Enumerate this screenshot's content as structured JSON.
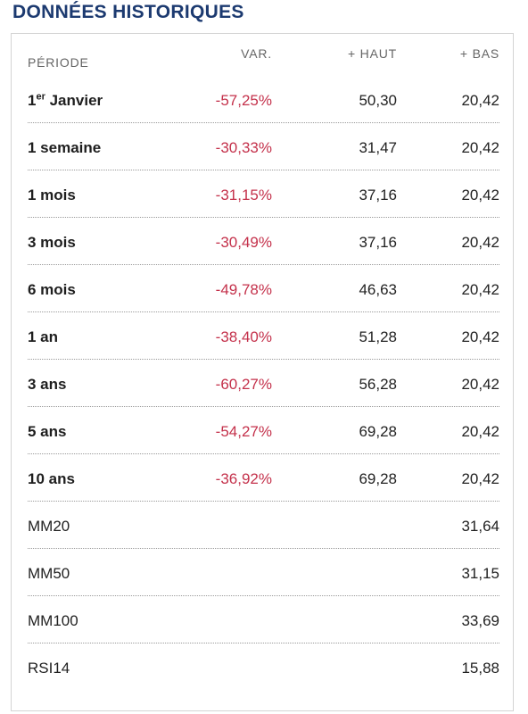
{
  "title": "DONNÉES HISTORIQUES",
  "header": {
    "periode": "PÉRIODE",
    "var": "VAR.",
    "haut": "+ HAUT",
    "bas": "+ BAS"
  },
  "first_row": {
    "label_base": "1",
    "label_sup": "er",
    "label_rest": " Janvier",
    "var": "-57,25%",
    "haut": "50,30",
    "bas": "20,42"
  },
  "rows": [
    {
      "label": "1 semaine",
      "var": "-30,33%",
      "haut": "31,47",
      "bas": "20,42"
    },
    {
      "label": "1 mois",
      "var": "-31,15%",
      "haut": "37,16",
      "bas": "20,42"
    },
    {
      "label": "3 mois",
      "var": "-30,49%",
      "haut": "37,16",
      "bas": "20,42"
    },
    {
      "label": "6 mois",
      "var": "-49,78%",
      "haut": "46,63",
      "bas": "20,42"
    },
    {
      "label": "1 an",
      "var": "-38,40%",
      "haut": "51,28",
      "bas": "20,42"
    },
    {
      "label": "3 ans",
      "var": "-60,27%",
      "haut": "56,28",
      "bas": "20,42"
    },
    {
      "label": "5 ans",
      "var": "-54,27%",
      "haut": "69,28",
      "bas": "20,42"
    },
    {
      "label": "10 ans",
      "var": "-36,92%",
      "haut": "69,28",
      "bas": "20,42"
    }
  ],
  "indicators": [
    {
      "label": "MM20",
      "value": "31,64"
    },
    {
      "label": "MM50",
      "value": "31,15"
    },
    {
      "label": "MM100",
      "value": "33,69"
    },
    {
      "label": "RSI14",
      "value": "15,88"
    }
  ],
  "colors": {
    "title": "#1c3a70",
    "negative": "#c4314b",
    "header_text": "#666666"
  }
}
